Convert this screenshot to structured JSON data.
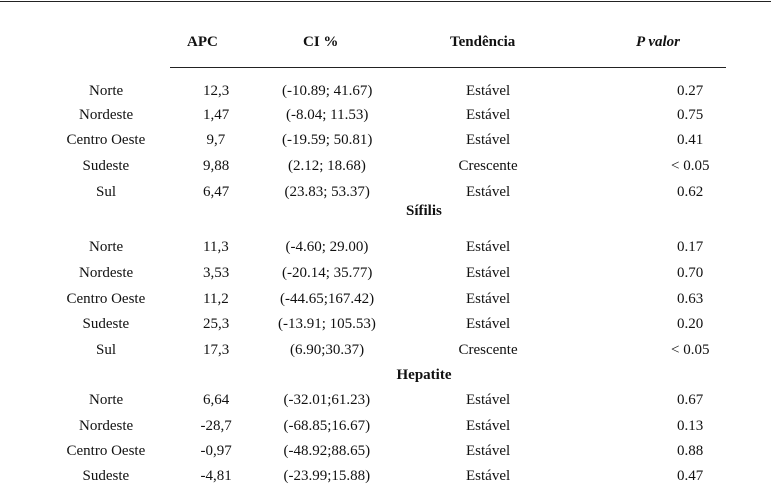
{
  "headers": {
    "apc": "APC",
    "ci": "CI %",
    "trend": "Tendência",
    "p": "P valor"
  },
  "groups": [
    {
      "title": "",
      "rows": [
        {
          "region": "Norte",
          "apc": "12,3",
          "ci": "(-10.89; 41.67)",
          "trend": "Estável",
          "p": "0.27"
        },
        {
          "region": "Nordeste",
          "apc": "1,47",
          "ci": "(-8.04; 11.53)",
          "trend": "Estável",
          "p": "0.75"
        },
        {
          "region": "Centro Oeste",
          "apc": "9,7",
          "ci": "(-19.59; 50.81)",
          "trend": "Estável",
          "p": "0.41"
        },
        {
          "region": "Sudeste",
          "apc": "9,88",
          "ci": "(2.12; 18.68)",
          "trend": "Crescente",
          "p": "< 0.05"
        },
        {
          "region": "Sul",
          "apc": "6,47",
          "ci": "(23.83; 53.37)",
          "trend": "Estável",
          "p": "0.62"
        }
      ]
    },
    {
      "title": "Sífilis",
      "rows": [
        {
          "region": "Norte",
          "apc": "11,3",
          "ci": "(-4.60; 29.00)",
          "trend": "Estável",
          "p": "0.17"
        },
        {
          "region": "Nordeste",
          "apc": "3,53",
          "ci": "(-20.14; 35.77)",
          "trend": "Estável",
          "p": "0.70"
        },
        {
          "region": "Centro Oeste",
          "apc": "11,2",
          "ci": "(-44.65;167.42)",
          "trend": "Estável",
          "p": "0.63"
        },
        {
          "region": "Sudeste",
          "apc": "25,3",
          "ci": "(-13.91; 105.53)",
          "trend": "Estável",
          "p": "0.20"
        },
        {
          "region": "Sul",
          "apc": "17,3",
          "ci": "(6.90;30.37)",
          "trend": "Crescente",
          "p": "< 0.05"
        }
      ]
    },
    {
      "title": "Hepatite",
      "rows": [
        {
          "region": "Norte",
          "apc": "6,64",
          "ci": "(-32.01;61.23)",
          "trend": "Estável",
          "p": "0.67"
        },
        {
          "region": "Nordeste",
          "apc": "-28,7",
          "ci": "(-68.85;16.67)",
          "trend": "Estável",
          "p": "0.13"
        },
        {
          "region": "Centro Oeste",
          "apc": "-0,97",
          "ci": "(-48.92;88.65)",
          "trend": "Estável",
          "p": "0.88"
        },
        {
          "region": "Sudeste",
          "apc": "-4,81",
          "ci": "(-23.99;15.88)",
          "trend": "Estável",
          "p": "0.47"
        }
      ]
    }
  ]
}
